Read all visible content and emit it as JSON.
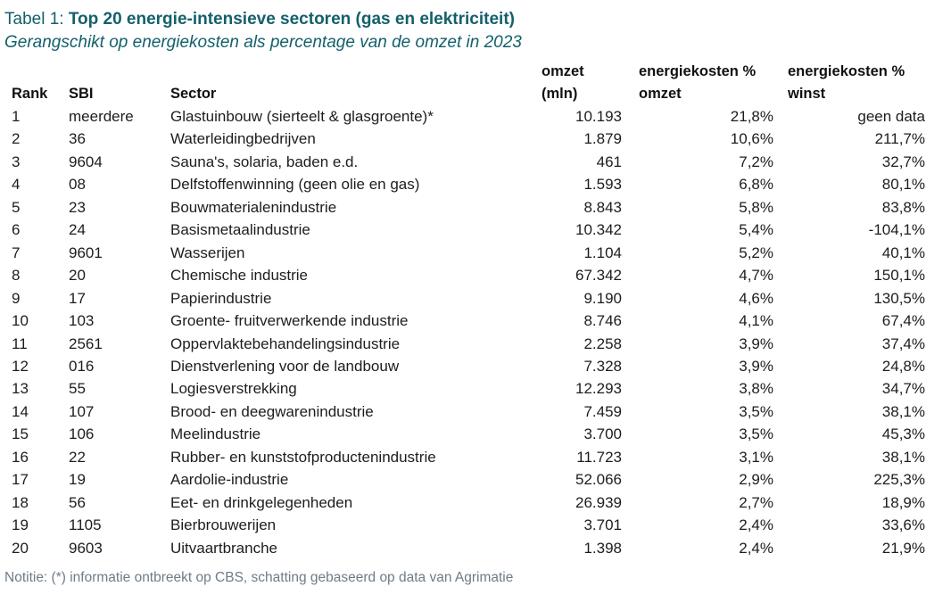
{
  "page": {
    "title_prefix": "Tabel 1: ",
    "title_bold": "Top 20 energie-intensieve sectoren (gas en elektriciteit)",
    "subtitle": "Gerangschikt op energiekosten als percentage van de omzet in 2023",
    "footnote": "Notitie: (*) informatie ontbreekt op CBS, schatting gebaseerd op data van Agrimatie"
  },
  "colors": {
    "title_teal": "#14606b",
    "body_text": "#1d1d1b",
    "note_gray": "#6f7b87",
    "background": "#ffffff"
  },
  "chart_data": {
    "type": "table",
    "title": "Tabel 1: Top 20 energie-intensieve sectoren (gas en elektriciteit)",
    "subtitle": "Gerangschikt op energiekosten als percentage van de omzet in 2023",
    "headers": {
      "rank": "Rank",
      "sbi": "SBI",
      "sector": "Sector",
      "omzet_line1": "omzet",
      "omzet_line2": "(mln)",
      "ek_omzet_line1": "energiekosten %",
      "ek_omzet_line2": "omzet",
      "ek_winst_line1": "energiekosten %",
      "ek_winst_line2": "winst"
    },
    "rows": [
      {
        "rank": "1",
        "sbi": "meerdere",
        "sector": "Glastuinbouw (sierteelt & glasgroente)*",
        "omzet": "10.193",
        "ek_omzet": "21,8%",
        "ek_winst": "geen data"
      },
      {
        "rank": "2",
        "sbi": "36",
        "sector": "Waterleidingbedrijven",
        "omzet": "1.879",
        "ek_omzet": "10,6%",
        "ek_winst": "211,7%"
      },
      {
        "rank": "3",
        "sbi": "9604",
        "sector": "Sauna's, solaria, baden e.d.",
        "omzet": "461",
        "ek_omzet": "7,2%",
        "ek_winst": "32,7%"
      },
      {
        "rank": "4",
        "sbi": "08",
        "sector": "Delfstoffenwinning (geen olie en gas)",
        "omzet": "1.593",
        "ek_omzet": "6,8%",
        "ek_winst": "80,1%"
      },
      {
        "rank": "5",
        "sbi": "23",
        "sector": "Bouwmaterialenindustrie",
        "omzet": "8.843",
        "ek_omzet": "5,8%",
        "ek_winst": "83,8%"
      },
      {
        "rank": "6",
        "sbi": "24",
        "sector": "Basismetaalindustrie",
        "omzet": "10.342",
        "ek_omzet": "5,4%",
        "ek_winst": "-104,1%"
      },
      {
        "rank": "7",
        "sbi": "9601",
        "sector": "Wasserijen",
        "omzet": "1.104",
        "ek_omzet": "5,2%",
        "ek_winst": "40,1%"
      },
      {
        "rank": "8",
        "sbi": "20",
        "sector": "Chemische industrie",
        "omzet": "67.342",
        "ek_omzet": "4,7%",
        "ek_winst": "150,1%"
      },
      {
        "rank": "9",
        "sbi": "17",
        "sector": "Papierindustrie",
        "omzet": "9.190",
        "ek_omzet": "4,6%",
        "ek_winst": "130,5%"
      },
      {
        "rank": "10",
        "sbi": "103",
        "sector": "Groente- fruitverwerkende industrie",
        "omzet": "8.746",
        "ek_omzet": "4,1%",
        "ek_winst": "67,4%"
      },
      {
        "rank": "11",
        "sbi": "2561",
        "sector": "Oppervlaktebehandelingsindustrie",
        "omzet": "2.258",
        "ek_omzet": "3,9%",
        "ek_winst": "37,4%"
      },
      {
        "rank": "12",
        "sbi": "016",
        "sector": "Dienstverlening voor de landbouw",
        "omzet": "7.328",
        "ek_omzet": "3,9%",
        "ek_winst": "24,8%"
      },
      {
        "rank": "13",
        "sbi": "55",
        "sector": "Logiesverstrekking",
        "omzet": "12.293",
        "ek_omzet": "3,8%",
        "ek_winst": "34,7%"
      },
      {
        "rank": "14",
        "sbi": "107",
        "sector": "Brood- en deegwarenindustrie",
        "omzet": "7.459",
        "ek_omzet": "3,5%",
        "ek_winst": "38,1%"
      },
      {
        "rank": "15",
        "sbi": "106",
        "sector": "Meelindustrie",
        "omzet": "3.700",
        "ek_omzet": "3,5%",
        "ek_winst": "45,3%"
      },
      {
        "rank": "16",
        "sbi": "22",
        "sector": "Rubber- en kunststofproductenindustrie",
        "omzet": "11.723",
        "ek_omzet": "3,1%",
        "ek_winst": "38,1%"
      },
      {
        "rank": "17",
        "sbi": "19",
        "sector": "Aardolie-industrie",
        "omzet": "52.066",
        "ek_omzet": "2,9%",
        "ek_winst": "225,3%"
      },
      {
        "rank": "18",
        "sbi": "56",
        "sector": "Eet- en drinkgelegenheden",
        "omzet": "26.939",
        "ek_omzet": "2,7%",
        "ek_winst": "18,9%"
      },
      {
        "rank": "19",
        "sbi": "1105",
        "sector": "Bierbrouwerijen",
        "omzet": "3.701",
        "ek_omzet": "2,4%",
        "ek_winst": "33,6%"
      },
      {
        "rank": "20",
        "sbi": "9603",
        "sector": "Uitvaartbranche",
        "omzet": "1.398",
        "ek_omzet": "2,4%",
        "ek_winst": "21,9%"
      }
    ]
  }
}
